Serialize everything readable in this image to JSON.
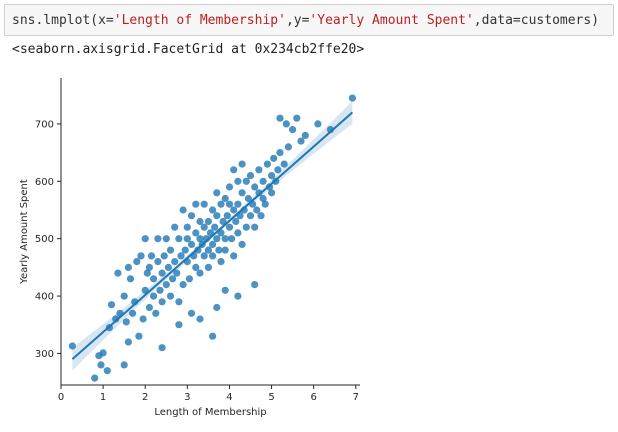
{
  "cell": {
    "code_prefix": "sns.lmplot(x=",
    "x_arg": "'Length of Membership'",
    "mid": ",y=",
    "y_arg": "'Yearly Amount Spent'",
    "tail": ",data=customers)",
    "output_text": "<seaborn.axisgrid.FacetGrid at 0x234cb2ffe20>"
  },
  "colors": {
    "points": "#1f77b4",
    "line": "#1f77b4",
    "band": "#1f77b4"
  },
  "chart_data": {
    "type": "scatter",
    "title": "",
    "xlabel": "Length of Membership",
    "ylabel": "Yearly Amount Spent",
    "xlim": [
      0,
      7.1
    ],
    "ylim": [
      245,
      780
    ],
    "xticks": [
      0,
      1,
      2,
      3,
      4,
      5,
      6,
      7
    ],
    "yticks": [
      300,
      400,
      500,
      600,
      700
    ],
    "regression_line": {
      "x": [
        0.27,
        6.92
      ],
      "y": [
        290,
        720
      ]
    },
    "x": [
      0.27,
      0.8,
      0.9,
      0.95,
      1.0,
      1.1,
      1.15,
      1.2,
      1.3,
      1.35,
      1.4,
      1.5,
      1.5,
      1.55,
      1.6,
      1.6,
      1.65,
      1.7,
      1.75,
      1.8,
      1.85,
      1.9,
      1.95,
      2.0,
      2.0,
      2.05,
      2.1,
      2.1,
      2.15,
      2.2,
      2.2,
      2.25,
      2.3,
      2.3,
      2.35,
      2.4,
      2.4,
      2.45,
      2.5,
      2.5,
      2.55,
      2.6,
      2.6,
      2.65,
      2.7,
      2.7,
      2.75,
      2.8,
      2.8,
      2.85,
      2.9,
      2.9,
      2.95,
      3.0,
      3.0,
      3.0,
      3.05,
      3.1,
      3.1,
      3.15,
      3.2,
      3.2,
      3.2,
      3.25,
      3.3,
      3.3,
      3.3,
      3.35,
      3.4,
      3.4,
      3.4,
      3.45,
      3.5,
      3.5,
      3.5,
      3.55,
      3.6,
      3.6,
      3.6,
      3.65,
      3.7,
      3.7,
      3.7,
      3.75,
      3.8,
      3.8,
      3.8,
      3.85,
      3.9,
      3.9,
      3.9,
      3.95,
      4.0,
      4.0,
      4.0,
      4.05,
      4.1,
      4.1,
      4.1,
      4.15,
      4.2,
      4.2,
      4.2,
      4.25,
      4.3,
      4.3,
      4.3,
      4.35,
      4.4,
      4.4,
      4.45,
      4.5,
      4.5,
      4.55,
      4.6,
      4.6,
      4.65,
      4.7,
      4.7,
      4.75,
      4.8,
      4.8,
      4.85,
      4.9,
      4.95,
      5.0,
      5.0,
      5.05,
      5.1,
      5.15,
      5.2,
      5.3,
      5.35,
      5.4,
      5.5,
      5.6,
      5.7,
      5.8,
      6.1,
      6.4,
      6.92,
      3.1,
      3.6,
      4.2,
      2.8,
      3.3,
      3.9,
      4.6,
      2.4,
      3.7,
      5.2
    ],
    "y": [
      313,
      257,
      296,
      280,
      301,
      270,
      345,
      385,
      360,
      440,
      370,
      280,
      400,
      355,
      450,
      320,
      430,
      370,
      390,
      460,
      330,
      470,
      360,
      500,
      410,
      440,
      380,
      450,
      470,
      400,
      430,
      370,
      460,
      500,
      410,
      440,
      390,
      470,
      420,
      500,
      450,
      400,
      480,
      430,
      460,
      520,
      440,
      390,
      500,
      470,
      420,
      550,
      480,
      460,
      500,
      520,
      430,
      490,
      540,
      470,
      510,
      450,
      560,
      480,
      500,
      530,
      440,
      490,
      520,
      470,
      560,
      500,
      480,
      530,
      450,
      510,
      490,
      550,
      470,
      520,
      500,
      540,
      580,
      480,
      510,
      560,
      460,
      530,
      500,
      570,
      480,
      540,
      520,
      590,
      560,
      500,
      550,
      620,
      470,
      530,
      600,
      510,
      560,
      540,
      580,
      490,
      630,
      550,
      520,
      600,
      570,
      540,
      610,
      560,
      520,
      590,
      550,
      580,
      620,
      540,
      600,
      570,
      560,
      630,
      590,
      610,
      580,
      640,
      600,
      620,
      650,
      630,
      700,
      660,
      690,
      710,
      670,
      680,
      700,
      690,
      745,
      370,
      330,
      400,
      350,
      360,
      410,
      420,
      310,
      380,
      710
    ]
  }
}
